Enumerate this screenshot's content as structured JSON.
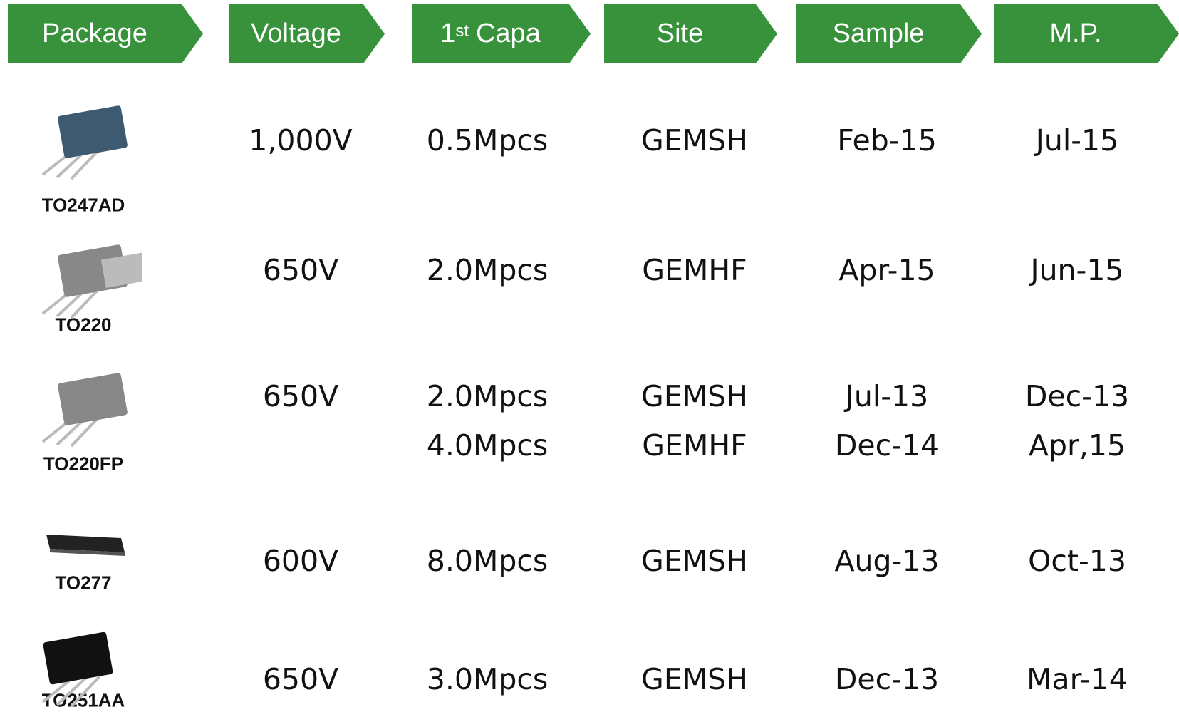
{
  "header": {
    "columns": [
      "Package",
      "Voltage",
      {
        "main": "1",
        "sup": "st",
        "rest": "Capa"
      },
      "Site",
      "Sample",
      "M.P."
    ]
  },
  "table": {
    "rows": [
      {
        "package": "TO247AD",
        "voltage": "1,000V",
        "capa": [
          "0.5Mpcs"
        ],
        "site": [
          "GEMSH"
        ],
        "sample": [
          "Feb-15"
        ],
        "mp": [
          "Jul-15"
        ]
      },
      {
        "package": "TO220",
        "voltage": "650V",
        "capa": [
          "2.0Mpcs"
        ],
        "site": [
          "GEMHF"
        ],
        "sample": [
          "Apr-15"
        ],
        "mp": [
          "Jun-15"
        ]
      },
      {
        "package": "TO220FP",
        "voltage": "650V",
        "capa": [
          "2.0Mpcs",
          "4.0Mpcs"
        ],
        "site": [
          "GEMSH",
          "GEMHF"
        ],
        "sample": [
          "Jul-13",
          "Dec-14"
        ],
        "mp": [
          "Dec-13",
          "Apr,15"
        ]
      },
      {
        "package": "TO277",
        "voltage": "600V",
        "capa": [
          "8.0Mpcs"
        ],
        "site": [
          "GEMSH"
        ],
        "sample": [
          "Aug-13"
        ],
        "mp": [
          "Oct-13"
        ]
      },
      {
        "package": "TO251AA",
        "voltage": "650V",
        "capa": [
          "3.0Mpcs"
        ],
        "site": [
          "GEMSH"
        ],
        "sample": [
          "Dec-13"
        ],
        "mp": [
          "Mar-14"
        ]
      }
    ]
  }
}
